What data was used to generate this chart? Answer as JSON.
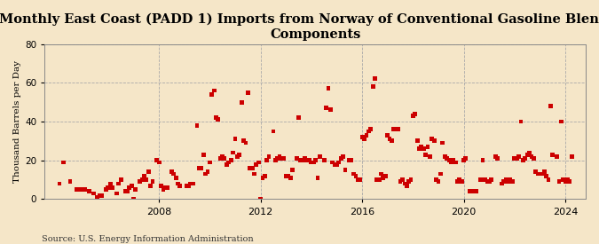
{
  "title": "Monthly East Coast (PADD 1) Imports from Norway of Conventional Gasoline Blending\nComponents",
  "ylabel": "Thousand Barrels per Day",
  "source": "Source: U.S. Energy Information Administration",
  "background_color": "#f5e6c8",
  "plot_bg_color": "#f5e6c8",
  "marker_color": "#cc0000",
  "ylim": [
    0,
    80
  ],
  "yticks": [
    0,
    20,
    40,
    60,
    80
  ],
  "xlim": [
    2003.5,
    2024.8
  ],
  "xticks": [
    2008,
    2012,
    2016,
    2020,
    2024
  ],
  "title_fontsize": 10.5,
  "ylabel_fontsize": 7.5,
  "source_fontsize": 7.0,
  "data_x": [
    2004.08,
    2004.25,
    2004.5,
    2004.75,
    2004.92,
    2005.08,
    2005.25,
    2005.42,
    2005.58,
    2005.67,
    2005.75,
    2005.92,
    2006.0,
    2006.08,
    2006.17,
    2006.33,
    2006.42,
    2006.5,
    2006.67,
    2006.75,
    2006.83,
    2006.92,
    2007.0,
    2007.08,
    2007.25,
    2007.33,
    2007.42,
    2007.5,
    2007.58,
    2007.67,
    2007.75,
    2007.92,
    2008.0,
    2008.08,
    2008.17,
    2008.25,
    2008.33,
    2008.5,
    2008.58,
    2008.67,
    2008.75,
    2008.83,
    2009.08,
    2009.17,
    2009.25,
    2009.33,
    2009.5,
    2009.58,
    2009.67,
    2009.75,
    2009.83,
    2009.92,
    2010.0,
    2010.08,
    2010.17,
    2010.25,
    2010.33,
    2010.42,
    2010.5,
    2010.58,
    2010.67,
    2010.75,
    2010.83,
    2010.92,
    2011.0,
    2011.08,
    2011.17,
    2011.25,
    2011.33,
    2011.42,
    2011.5,
    2011.58,
    2011.67,
    2011.75,
    2011.83,
    2011.92,
    2012.0,
    2012.08,
    2012.17,
    2012.25,
    2012.33,
    2012.5,
    2012.58,
    2012.67,
    2012.75,
    2012.83,
    2012.92,
    2013.0,
    2013.08,
    2013.17,
    2013.25,
    2013.42,
    2013.5,
    2013.58,
    2013.67,
    2013.75,
    2013.83,
    2013.92,
    2014.0,
    2014.08,
    2014.17,
    2014.25,
    2014.33,
    2014.5,
    2014.58,
    2014.67,
    2014.75,
    2014.83,
    2014.92,
    2015.0,
    2015.08,
    2015.17,
    2015.25,
    2015.33,
    2015.5,
    2015.58,
    2015.67,
    2015.75,
    2015.83,
    2015.92,
    2016.0,
    2016.08,
    2016.17,
    2016.25,
    2016.33,
    2016.42,
    2016.5,
    2016.58,
    2016.67,
    2016.75,
    2016.83,
    2016.92,
    2017.0,
    2017.08,
    2017.17,
    2017.25,
    2017.33,
    2017.42,
    2017.5,
    2017.58,
    2017.67,
    2017.75,
    2017.83,
    2017.92,
    2018.0,
    2018.08,
    2018.17,
    2018.25,
    2018.33,
    2018.42,
    2018.5,
    2018.58,
    2018.67,
    2018.75,
    2018.83,
    2018.92,
    2019.0,
    2019.08,
    2019.17,
    2019.25,
    2019.33,
    2019.42,
    2019.5,
    2019.58,
    2019.67,
    2019.75,
    2019.83,
    2019.92,
    2020.0,
    2020.08,
    2020.25,
    2020.33,
    2020.42,
    2020.5,
    2020.67,
    2020.75,
    2020.83,
    2020.92,
    2021.0,
    2021.08,
    2021.25,
    2021.33,
    2021.5,
    2021.58,
    2021.67,
    2021.75,
    2021.83,
    2021.92,
    2022.0,
    2022.08,
    2022.17,
    2022.25,
    2022.33,
    2022.42,
    2022.5,
    2022.58,
    2022.67,
    2022.75,
    2022.83,
    2022.92,
    2023.0,
    2023.08,
    2023.17,
    2023.25,
    2023.33,
    2023.42,
    2023.5,
    2023.67,
    2023.75,
    2023.83,
    2023.92,
    2024.0,
    2024.08,
    2024.17,
    2024.25
  ],
  "data_y": [
    8,
    19,
    9,
    5,
    5,
    5,
    4,
    3,
    1,
    2,
    2,
    5,
    6,
    8,
    6,
    3,
    8,
    10,
    4,
    4,
    6,
    7,
    0,
    5,
    9,
    10,
    12,
    10,
    14,
    7,
    9,
    20,
    19,
    7,
    5,
    6,
    6,
    14,
    13,
    11,
    8,
    7,
    7,
    7,
    8,
    8,
    38,
    16,
    16,
    23,
    13,
    14,
    19,
    54,
    56,
    42,
    41,
    21,
    22,
    21,
    18,
    19,
    20,
    24,
    31,
    22,
    23,
    50,
    30,
    29,
    55,
    16,
    16,
    13,
    18,
    19,
    0,
    11,
    12,
    20,
    22,
    35,
    20,
    21,
    22,
    21,
    21,
    12,
    12,
    11,
    15,
    21,
    42,
    20,
    20,
    21,
    20,
    20,
    19,
    19,
    20,
    11,
    22,
    20,
    47,
    57,
    46,
    19,
    18,
    18,
    19,
    21,
    22,
    15,
    20,
    20,
    13,
    12,
    10,
    10,
    32,
    31,
    33,
    35,
    36,
    58,
    62,
    10,
    10,
    13,
    11,
    12,
    33,
    31,
    30,
    36,
    36,
    36,
    9,
    10,
    8,
    7,
    9,
    10,
    43,
    44,
    30,
    26,
    27,
    26,
    23,
    27,
    22,
    31,
    30,
    10,
    9,
    13,
    29,
    22,
    21,
    20,
    19,
    20,
    19,
    9,
    10,
    9,
    20,
    21,
    4,
    4,
    4,
    4,
    10,
    20,
    10,
    9,
    9,
    10,
    22,
    21,
    8,
    9,
    10,
    9,
    10,
    9,
    21,
    21,
    22,
    40,
    20,
    21,
    23,
    24,
    22,
    21,
    14,
    13,
    13,
    13,
    14,
    12,
    10,
    48,
    23,
    22,
    9,
    40,
    10,
    9,
    10,
    9,
    22
  ]
}
